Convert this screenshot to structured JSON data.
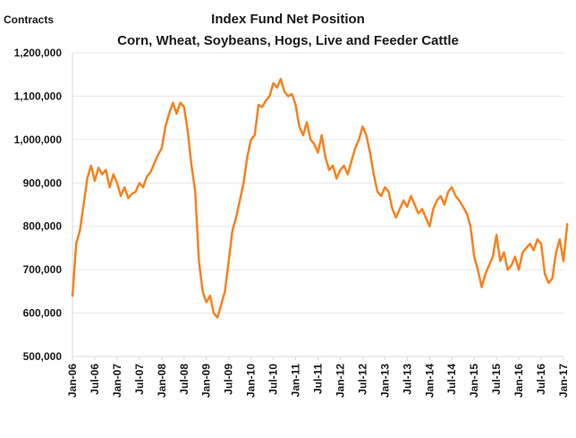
{
  "chart_data": {
    "type": "line",
    "title": "Index Fund Net Position",
    "subtitle": "Corn, Wheat, Soybeans, Hogs, Live and Feeder Cattle",
    "ylabel": "Contracts",
    "xlabel": "",
    "ylim": [
      500000,
      1200000
    ],
    "yticks": [
      500000,
      600000,
      700000,
      800000,
      900000,
      1000000,
      1100000,
      1200000
    ],
    "ytick_labels": [
      "500,000",
      "600,000",
      "700,000",
      "800,000",
      "900,000",
      "1,000,000",
      "1,100,000",
      "1,200,000"
    ],
    "xlim": [
      "2006-01",
      "2017-01"
    ],
    "xtick_labels": [
      "Jan-06",
      "Jul-06",
      "Jan-07",
      "Jul-07",
      "Jan-08",
      "Jul-08",
      "Jan-09",
      "Jul-09",
      "Jan-10",
      "Jul-10",
      "Jan-11",
      "Jul-11",
      "Jan-12",
      "Jul-12",
      "Jan-13",
      "Jul-13",
      "Jan-14",
      "Jul-14",
      "Jan-15",
      "Jul-15",
      "Jan-16",
      "Jul-16",
      "Jan-17"
    ],
    "grid": "horizontal",
    "legend": "none",
    "series": [
      {
        "color": "#f5821f",
        "points": [
          [
            "2006-01",
            640000
          ],
          [
            "2006-02",
            760000
          ],
          [
            "2006-03",
            790000
          ],
          [
            "2006-04",
            850000
          ],
          [
            "2006-05",
            910000
          ],
          [
            "2006-06",
            940000
          ],
          [
            "2006-07",
            905000
          ],
          [
            "2006-08",
            935000
          ],
          [
            "2006-09",
            920000
          ],
          [
            "2006-10",
            930000
          ],
          [
            "2006-11",
            890000
          ],
          [
            "2006-12",
            920000
          ],
          [
            "2007-01",
            900000
          ],
          [
            "2007-02",
            870000
          ],
          [
            "2007-03",
            890000
          ],
          [
            "2007-04",
            865000
          ],
          [
            "2007-05",
            875000
          ],
          [
            "2007-06",
            880000
          ],
          [
            "2007-07",
            900000
          ],
          [
            "2007-08",
            890000
          ],
          [
            "2007-09",
            915000
          ],
          [
            "2007-10",
            925000
          ],
          [
            "2007-11",
            945000
          ],
          [
            "2007-12",
            965000
          ],
          [
            "2008-01",
            980000
          ],
          [
            "2008-02",
            1030000
          ],
          [
            "2008-03",
            1060000
          ],
          [
            "2008-04",
            1085000
          ],
          [
            "2008-05",
            1060000
          ],
          [
            "2008-06",
            1085000
          ],
          [
            "2008-07",
            1075000
          ],
          [
            "2008-08",
            1020000
          ],
          [
            "2008-09",
            940000
          ],
          [
            "2008-10",
            880000
          ],
          [
            "2008-11",
            720000
          ],
          [
            "2008-12",
            650000
          ],
          [
            "2009-01",
            625000
          ],
          [
            "2009-02",
            640000
          ],
          [
            "2009-03",
            600000
          ],
          [
            "2009-04",
            590000
          ],
          [
            "2009-05",
            620000
          ],
          [
            "2009-06",
            650000
          ],
          [
            "2009-07",
            720000
          ],
          [
            "2009-08",
            790000
          ],
          [
            "2009-09",
            820000
          ],
          [
            "2009-10",
            860000
          ],
          [
            "2009-11",
            900000
          ],
          [
            "2009-12",
            960000
          ],
          [
            "2010-01",
            1000000
          ],
          [
            "2010-02",
            1010000
          ],
          [
            "2010-03",
            1080000
          ],
          [
            "2010-04",
            1075000
          ],
          [
            "2010-05",
            1090000
          ],
          [
            "2010-06",
            1100000
          ],
          [
            "2010-07",
            1130000
          ],
          [
            "2010-08",
            1120000
          ],
          [
            "2010-09",
            1140000
          ],
          [
            "2010-10",
            1110000
          ],
          [
            "2010-11",
            1100000
          ],
          [
            "2010-12",
            1105000
          ],
          [
            "2011-01",
            1080000
          ],
          [
            "2011-02",
            1030000
          ],
          [
            "2011-03",
            1010000
          ],
          [
            "2011-04",
            1040000
          ],
          [
            "2011-05",
            1000000
          ],
          [
            "2011-06",
            990000
          ],
          [
            "2011-07",
            970000
          ],
          [
            "2011-08",
            1010000
          ],
          [
            "2011-09",
            960000
          ],
          [
            "2011-10",
            930000
          ],
          [
            "2011-11",
            940000
          ],
          [
            "2011-12",
            910000
          ],
          [
            "2012-01",
            930000
          ],
          [
            "2012-02",
            940000
          ],
          [
            "2012-03",
            920000
          ],
          [
            "2012-04",
            950000
          ],
          [
            "2012-05",
            980000
          ],
          [
            "2012-06",
            1000000
          ],
          [
            "2012-07",
            1030000
          ],
          [
            "2012-08",
            1010000
          ],
          [
            "2012-09",
            970000
          ],
          [
            "2012-10",
            920000
          ],
          [
            "2012-11",
            880000
          ],
          [
            "2012-12",
            870000
          ],
          [
            "2013-01",
            890000
          ],
          [
            "2013-02",
            880000
          ],
          [
            "2013-03",
            840000
          ],
          [
            "2013-04",
            820000
          ],
          [
            "2013-05",
            840000
          ],
          [
            "2013-06",
            860000
          ],
          [
            "2013-07",
            845000
          ],
          [
            "2013-08",
            870000
          ],
          [
            "2013-09",
            850000
          ],
          [
            "2013-10",
            830000
          ],
          [
            "2013-11",
            840000
          ],
          [
            "2013-12",
            820000
          ],
          [
            "2014-01",
            800000
          ],
          [
            "2014-02",
            840000
          ],
          [
            "2014-03",
            860000
          ],
          [
            "2014-04",
            870000
          ],
          [
            "2014-05",
            850000
          ],
          [
            "2014-06",
            880000
          ],
          [
            "2014-07",
            890000
          ],
          [
            "2014-08",
            870000
          ],
          [
            "2014-09",
            860000
          ],
          [
            "2014-10",
            845000
          ],
          [
            "2014-11",
            830000
          ],
          [
            "2014-12",
            800000
          ],
          [
            "2015-01",
            730000
          ],
          [
            "2015-02",
            700000
          ],
          [
            "2015-03",
            660000
          ],
          [
            "2015-04",
            690000
          ],
          [
            "2015-05",
            710000
          ],
          [
            "2015-06",
            730000
          ],
          [
            "2015-07",
            780000
          ],
          [
            "2015-08",
            720000
          ],
          [
            "2015-09",
            740000
          ],
          [
            "2015-10",
            700000
          ],
          [
            "2015-11",
            710000
          ],
          [
            "2015-12",
            730000
          ],
          [
            "2016-01",
            700000
          ],
          [
            "2016-02",
            740000
          ],
          [
            "2016-03",
            750000
          ],
          [
            "2016-04",
            760000
          ],
          [
            "2016-05",
            745000
          ],
          [
            "2016-06",
            770000
          ],
          [
            "2016-07",
            760000
          ],
          [
            "2016-08",
            690000
          ],
          [
            "2016-09",
            670000
          ],
          [
            "2016-10",
            680000
          ],
          [
            "2016-11",
            740000
          ],
          [
            "2016-12",
            770000
          ],
          [
            "2017-01",
            720000
          ],
          [
            "2017-02",
            805000
          ]
        ]
      }
    ]
  }
}
